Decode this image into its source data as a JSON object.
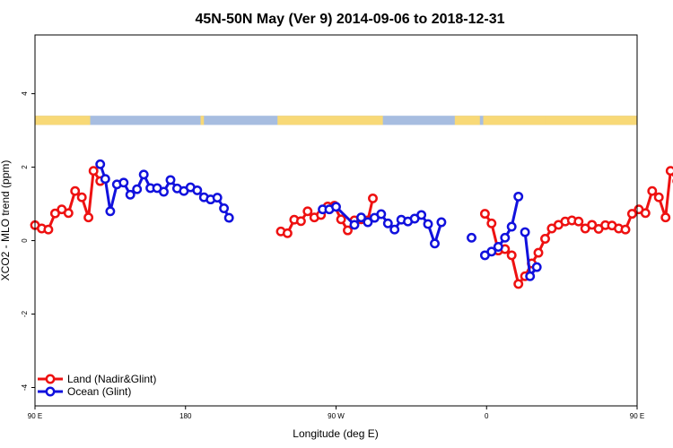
{
  "chart_data": {
    "type": "line",
    "title": "45N-50N May (Ver 9)   2014-09-06 to 2018-12-31",
    "xlabel": "Longitude (deg E)",
    "ylabel": "XCO2 - MLO trend (ppm)",
    "xlim": [
      90,
      450
    ],
    "ylim": [
      -4.5,
      5.6
    ],
    "x_ticks": [
      {
        "value": 90,
        "label": "90 E"
      },
      {
        "value": 180,
        "label": "180"
      },
      {
        "value": 270,
        "label": "90 W"
      },
      {
        "value": 360,
        "label": "0"
      },
      {
        "value": 450,
        "label": "90 E"
      },
      {
        "value": 540,
        "label": "180"
      }
    ],
    "y_ticks": [
      {
        "value": -4,
        "label": "-4"
      },
      {
        "value": -2,
        "label": "-2"
      },
      {
        "value": 0,
        "label": "0"
      },
      {
        "value": 2,
        "label": "2"
      },
      {
        "value": 4,
        "label": "4"
      }
    ],
    "legend_position": "bottom-left",
    "land_mask_band": {
      "y_range": [
        3.15,
        3.4
      ],
      "land_color": "#f8d977",
      "ocean_color": "#a7bde0"
    },
    "series": [
      {
        "name": "Land (Nadir&Glint)",
        "color": "#ee1111",
        "segments": [
          [
            [
              90,
              0.42
            ],
            [
              94,
              0.33
            ],
            [
              98,
              0.3
            ],
            [
              102,
              0.74
            ],
            [
              106,
              0.85
            ],
            [
              110,
              0.75
            ],
            [
              114,
              1.35
            ],
            [
              118,
              1.18
            ],
            [
              122,
              0.63
            ],
            [
              125,
              1.9
            ],
            [
              129,
              1.62
            ]
          ],
          [
            [
              237,
              0.25
            ],
            [
              241,
              0.2
            ],
            [
              245,
              0.57
            ],
            [
              249,
              0.53
            ],
            [
              253,
              0.8
            ],
            [
              257,
              0.63
            ],
            [
              261,
              0.7
            ],
            [
              265,
              0.93
            ],
            [
              269,
              0.95
            ],
            [
              273,
              0.58
            ],
            [
              277,
              0.28
            ],
            [
              281,
              0.55
            ],
            [
              285,
              0.58
            ],
            [
              289,
              0.55
            ],
            [
              292,
              1.15
            ]
          ],
          [
            [
              359,
              0.73
            ],
            [
              363,
              0.47
            ],
            [
              367,
              -0.27
            ],
            [
              371,
              -0.23
            ],
            [
              375,
              -0.4
            ],
            [
              379,
              -1.18
            ],
            [
              383,
              -0.97
            ],
            [
              387,
              -0.62
            ],
            [
              391,
              -0.33
            ],
            [
              395,
              0.05
            ],
            [
              399,
              0.33
            ],
            [
              403,
              0.43
            ],
            [
              407,
              0.52
            ],
            [
              411,
              0.55
            ],
            [
              415,
              0.52
            ],
            [
              419,
              0.33
            ],
            [
              423,
              0.43
            ],
            [
              427,
              0.32
            ],
            [
              431,
              0.42
            ],
            [
              435,
              0.41
            ],
            [
              439,
              0.33
            ],
            [
              443,
              0.3
            ],
            [
              447,
              0.73
            ],
            [
              451,
              0.85
            ],
            [
              455,
              0.75
            ],
            [
              459,
              1.35
            ],
            [
              463,
              1.18
            ],
            [
              467,
              0.63
            ],
            [
              470,
              1.9
            ],
            [
              474,
              1.62
            ]
          ]
        ]
      },
      {
        "name": "Ocean (Glint)",
        "color": "#1111dd",
        "segments": [
          [
            [
              129,
              2.08
            ],
            [
              132,
              1.68
            ],
            [
              135,
              0.8
            ],
            [
              139,
              1.53
            ],
            [
              143,
              1.58
            ],
            [
              147,
              1.25
            ],
            [
              151,
              1.4
            ],
            [
              155,
              1.8
            ],
            [
              159,
              1.43
            ],
            [
              163,
              1.43
            ],
            [
              167,
              1.33
            ],
            [
              171,
              1.65
            ],
            [
              175,
              1.42
            ],
            [
              179,
              1.35
            ],
            [
              183,
              1.45
            ],
            [
              187,
              1.37
            ],
            [
              191,
              1.18
            ],
            [
              195,
              1.12
            ],
            [
              199,
              1.17
            ],
            [
              203,
              0.88
            ],
            [
              206,
              0.62
            ]
          ],
          [
            [
              262,
              0.85
            ],
            [
              266,
              0.85
            ],
            [
              270,
              0.92
            ],
            [
              281,
              0.43
            ],
            [
              285,
              0.63
            ],
            [
              289,
              0.5
            ],
            [
              293,
              0.62
            ],
            [
              297,
              0.72
            ],
            [
              301,
              0.47
            ],
            [
              305,
              0.3
            ],
            [
              309,
              0.57
            ],
            [
              313,
              0.52
            ],
            [
              317,
              0.6
            ],
            [
              321,
              0.7
            ],
            [
              325,
              0.45
            ],
            [
              329,
              -0.08
            ],
            [
              333,
              0.5
            ]
          ],
          [
            [
              351,
              0.08
            ]
          ],
          [
            [
              359,
              -0.4
            ],
            [
              363,
              -0.3
            ],
            [
              367,
              -0.17
            ],
            [
              371,
              0.08
            ],
            [
              375,
              0.38
            ],
            [
              379,
              1.2
            ]
          ],
          [
            [
              383,
              0.23
            ],
            [
              386,
              -0.97
            ],
            [
              390,
              -0.72
            ]
          ]
        ]
      }
    ]
  }
}
